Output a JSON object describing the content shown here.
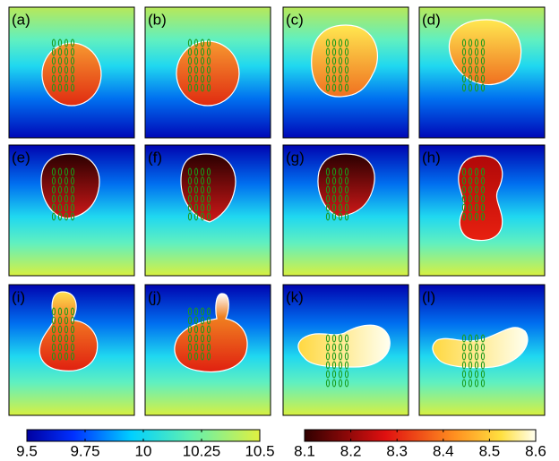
{
  "panels": [
    "(a)",
    "(b)",
    "(c)",
    "(d)",
    "(e)",
    "(f)",
    "(g)",
    "(h)",
    "(i)",
    "(j)",
    "(k)",
    "(l)"
  ],
  "colorbars": [
    {
      "lim": [
        9.5,
        10.5
      ],
      "ticks": [
        9.5,
        9.75,
        10,
        10.25,
        10.5
      ]
    },
    {
      "lim": [
        8.1,
        8.6
      ],
      "ticks": [
        8.1,
        8.2,
        8.3,
        8.4,
        8.5,
        8.6
      ]
    }
  ]
}
